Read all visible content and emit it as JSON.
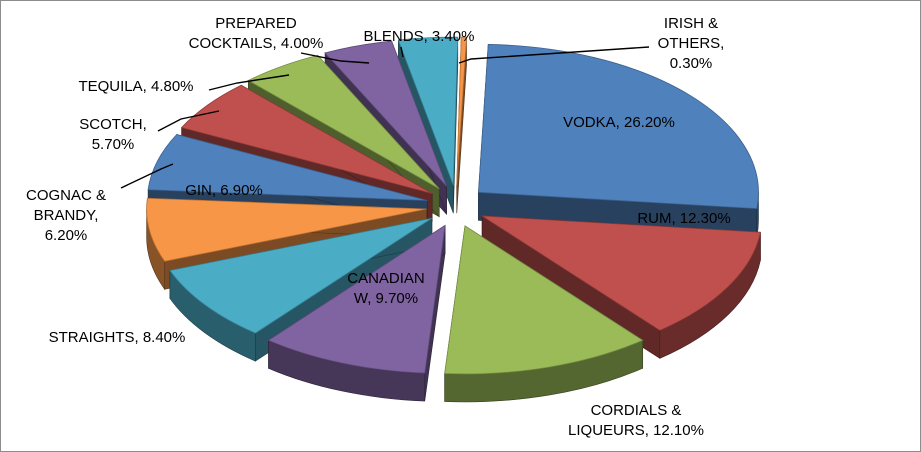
{
  "chart_data": {
    "type": "pie",
    "title": "",
    "legend": "none",
    "style": "exploded-3d",
    "slices": [
      {
        "label": "VODKA, 26.20%",
        "value": 26.2,
        "color": "#4f81bd"
      },
      {
        "label": "RUM, 12.30%",
        "value": 12.3,
        "color": "#c0504d"
      },
      {
        "label": "CORDIALS & LIQUEURS, 12.10%",
        "value": 12.1,
        "color": "#9bbb59"
      },
      {
        "label": "CANADIAN W, 9.70%",
        "value": 9.7,
        "color": "#8064a2"
      },
      {
        "label": "STRAIGHTS, 8.40%",
        "value": 8.4,
        "color": "#4bacc6"
      },
      {
        "label": "GIN, 6.90%",
        "value": 6.9,
        "color": "#f79646"
      },
      {
        "label": "COGNAC & BRANDY, 6.20%",
        "value": 6.2,
        "color": "#4f81bd"
      },
      {
        "label": "SCOTCH, 5.70%",
        "value": 5.7,
        "color": "#c0504d"
      },
      {
        "label": "TEQUILA, 4.80%",
        "value": 4.8,
        "color": "#9bbb59"
      },
      {
        "label": "PREPARED COCKTAILS, 4.00%",
        "value": 4.0,
        "color": "#8064a2"
      },
      {
        "label": "BLENDS, 3.40%",
        "value": 3.4,
        "color": "#4bacc6"
      },
      {
        "label": "IRISH & OTHERS, 0.30%",
        "value": 0.3,
        "color": "#f79646"
      }
    ]
  }
}
